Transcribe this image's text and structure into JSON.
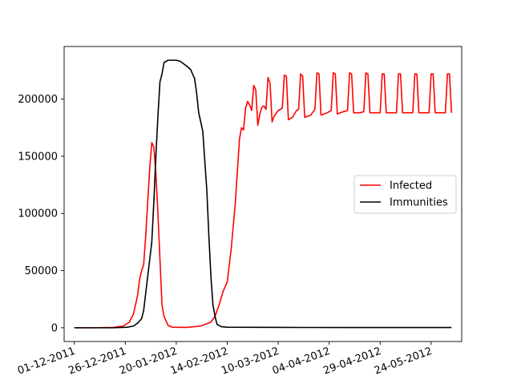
{
  "chart_data": {
    "type": "line",
    "title": "",
    "xlabel": "",
    "ylabel": "",
    "x_scale": "date",
    "xlim": [
      "2011-11-26",
      "2012-06-08"
    ],
    "ylim": [
      -12000,
      246000
    ],
    "grid": false,
    "legend_position": "center-right",
    "x_ticks": [
      "2011-12-01",
      "2011-12-26",
      "2012-01-20",
      "2012-02-14",
      "2012-03-10",
      "2012-04-04",
      "2012-04-29",
      "2012-05-24"
    ],
    "x_tick_labels": [
      "01-12-2011",
      "26-12-2011",
      "20-01-2012",
      "14-02-2012",
      "10-03-2012",
      "04-04-2012",
      "29-04-2012",
      "24-05-2012"
    ],
    "y_ticks": [
      0,
      50000,
      100000,
      150000,
      200000
    ],
    "y_tick_labels": [
      "0",
      "50000",
      "100000",
      "150000",
      "200000"
    ],
    "series": [
      {
        "name": "Infected",
        "color": "#ff0000",
        "points": [
          [
            "2011-12-01",
            0
          ],
          [
            "2011-12-10",
            0
          ],
          [
            "2011-12-20",
            300
          ],
          [
            "2011-12-25",
            1500
          ],
          [
            "2011-12-28",
            5000
          ],
          [
            "2011-12-30",
            12000
          ],
          [
            "2012-01-01",
            28000
          ],
          [
            "2012-01-02",
            42000
          ],
          [
            "2012-01-03",
            50000
          ],
          [
            "2012-01-04",
            55000
          ],
          [
            "2012-01-05",
            80000
          ],
          [
            "2012-01-06",
            110000
          ],
          [
            "2012-01-07",
            140000
          ],
          [
            "2012-01-08",
            162000
          ],
          [
            "2012-01-09",
            158000
          ],
          [
            "2012-01-10",
            135000
          ],
          [
            "2012-01-11",
            100000
          ],
          [
            "2012-01-12",
            60000
          ],
          [
            "2012-01-13",
            20000
          ],
          [
            "2012-01-14",
            10000
          ],
          [
            "2012-01-16",
            2000
          ],
          [
            "2012-01-18",
            500
          ],
          [
            "2012-01-25",
            300
          ],
          [
            "2012-02-01",
            1500
          ],
          [
            "2012-02-04",
            3500
          ],
          [
            "2012-02-06",
            5000
          ],
          [
            "2012-02-08",
            10000
          ],
          [
            "2012-02-10",
            20000
          ],
          [
            "2012-02-12",
            32000
          ],
          [
            "2012-02-14",
            40000
          ],
          [
            "2012-02-16",
            70000
          ],
          [
            "2012-02-18",
            110000
          ],
          [
            "2012-02-20",
            165000
          ],
          [
            "2012-02-21",
            175000
          ],
          [
            "2012-02-22",
            173000
          ],
          [
            "2012-02-23",
            192000
          ],
          [
            "2012-02-24",
            198000
          ],
          [
            "2012-02-25",
            195000
          ],
          [
            "2012-02-26",
            190000
          ],
          [
            "2012-02-27",
            212000
          ],
          [
            "2012-02-28",
            208000
          ],
          [
            "2012-02-29",
            177000
          ],
          [
            "2012-03-01",
            187000
          ],
          [
            "2012-03-02",
            193000
          ],
          [
            "2012-03-03",
            194000
          ],
          [
            "2012-03-04",
            191000
          ],
          [
            "2012-03-05",
            219000
          ],
          [
            "2012-03-06",
            214000
          ],
          [
            "2012-03-07",
            180000
          ],
          [
            "2012-03-08",
            185000
          ],
          [
            "2012-03-10",
            190000
          ],
          [
            "2012-03-11",
            191000
          ],
          [
            "2012-03-12",
            192000
          ],
          [
            "2012-03-13",
            221000
          ],
          [
            "2012-03-14",
            220000
          ],
          [
            "2012-03-15",
            182000
          ],
          [
            "2012-03-17",
            184000
          ],
          [
            "2012-03-19",
            190000
          ],
          [
            "2012-03-20",
            191000
          ],
          [
            "2012-03-21",
            222000
          ],
          [
            "2012-03-22",
            220000
          ],
          [
            "2012-03-23",
            184000
          ],
          [
            "2012-03-26",
            186000
          ],
          [
            "2012-03-28",
            191000
          ],
          [
            "2012-03-29",
            223000
          ],
          [
            "2012-03-30",
            222000
          ],
          [
            "2012-03-31",
            186000
          ],
          [
            "2012-04-03",
            188000
          ],
          [
            "2012-04-05",
            190000
          ],
          [
            "2012-04-06",
            223000
          ],
          [
            "2012-04-07",
            222000
          ],
          [
            "2012-04-08",
            187000
          ],
          [
            "2012-04-11",
            189000
          ],
          [
            "2012-04-13",
            190000
          ],
          [
            "2012-04-14",
            223000
          ],
          [
            "2012-04-15",
            222000
          ],
          [
            "2012-04-16",
            188000
          ],
          [
            "2012-04-19",
            188000
          ],
          [
            "2012-04-21",
            189000
          ],
          [
            "2012-04-22",
            223000
          ],
          [
            "2012-04-23",
            222000
          ],
          [
            "2012-04-24",
            188000
          ],
          [
            "2012-04-27",
            188000
          ],
          [
            "2012-04-29",
            188000
          ],
          [
            "2012-04-30",
            222000
          ],
          [
            "2012-05-01",
            222000
          ],
          [
            "2012-05-02",
            188000
          ],
          [
            "2012-05-05",
            188000
          ],
          [
            "2012-05-07",
            188000
          ],
          [
            "2012-05-08",
            222000
          ],
          [
            "2012-05-09",
            222000
          ],
          [
            "2012-05-10",
            188000
          ],
          [
            "2012-05-13",
            188000
          ],
          [
            "2012-05-15",
            188000
          ],
          [
            "2012-05-16",
            222000
          ],
          [
            "2012-05-17",
            222000
          ],
          [
            "2012-05-18",
            188000
          ],
          [
            "2012-05-21",
            188000
          ],
          [
            "2012-05-23",
            188000
          ],
          [
            "2012-05-24",
            222000
          ],
          [
            "2012-05-25",
            222000
          ],
          [
            "2012-05-26",
            188000
          ],
          [
            "2012-05-29",
            188000
          ],
          [
            "2012-05-31",
            188000
          ],
          [
            "2012-06-01",
            222000
          ],
          [
            "2012-06-02",
            222000
          ],
          [
            "2012-06-03",
            188000
          ]
        ]
      },
      {
        "name": "Immunities",
        "color": "#000000",
        "points": [
          [
            "2011-12-01",
            0
          ],
          [
            "2011-12-20",
            0
          ],
          [
            "2011-12-27",
            500
          ],
          [
            "2011-12-30",
            1500
          ],
          [
            "2012-01-01",
            4000
          ],
          [
            "2012-01-03",
            8000
          ],
          [
            "2012-01-04",
            15000
          ],
          [
            "2012-01-05",
            30000
          ],
          [
            "2012-01-06",
            45000
          ],
          [
            "2012-01-07",
            60000
          ],
          [
            "2012-01-08",
            75000
          ],
          [
            "2012-01-09",
            110000
          ],
          [
            "2012-01-10",
            150000
          ],
          [
            "2012-01-11",
            185000
          ],
          [
            "2012-01-12",
            215000
          ],
          [
            "2012-01-13",
            222000
          ],
          [
            "2012-01-14",
            232000
          ],
          [
            "2012-01-16",
            234000
          ],
          [
            "2012-01-20",
            234000
          ],
          [
            "2012-01-22",
            233000
          ],
          [
            "2012-01-25",
            229000
          ],
          [
            "2012-01-27",
            226000
          ],
          [
            "2012-01-29",
            218000
          ],
          [
            "2012-01-30",
            205000
          ],
          [
            "2012-01-31",
            188000
          ],
          [
            "2012-02-02",
            172000
          ],
          [
            "2012-02-04",
            120000
          ],
          [
            "2012-02-05",
            80000
          ],
          [
            "2012-02-06",
            45000
          ],
          [
            "2012-02-07",
            20000
          ],
          [
            "2012-02-08",
            10000
          ],
          [
            "2012-02-09",
            3000
          ],
          [
            "2012-02-11",
            1000
          ],
          [
            "2012-02-14",
            500
          ],
          [
            "2012-03-15",
            300
          ],
          [
            "2012-04-15",
            200
          ],
          [
            "2012-06-03",
            200
          ]
        ]
      }
    ]
  }
}
